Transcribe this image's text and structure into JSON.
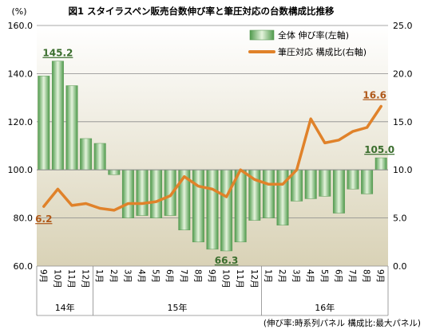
{
  "chart_data": {
    "type": "bar",
    "title": "図1 スタイラスペン販売台数伸び率と筆圧対応の台数構成比推移",
    "left_axis_unit": "(%)",
    "footnote": "(伸び率:時系列パネル 構成比:最大パネル)",
    "categories": [
      "9月",
      "10月",
      "11月",
      "12月",
      "1月",
      "2月",
      "3月",
      "4月",
      "5月",
      "6月",
      "7月",
      "8月",
      "9月",
      "10月",
      "11月",
      "12月",
      "1月",
      "2月",
      "3月",
      "4月",
      "5月",
      "6月",
      "7月",
      "8月",
      "9月"
    ],
    "year_groups": [
      {
        "label": "14年",
        "start": 0,
        "end": 3
      },
      {
        "label": "15年",
        "start": 4,
        "end": 15
      },
      {
        "label": "16年",
        "start": 16,
        "end": 24
      }
    ],
    "ylim_left": [
      60,
      160
    ],
    "yticks_left": [
      "60.0",
      "80.0",
      "100.0",
      "120.0",
      "140.0",
      "160.0"
    ],
    "ylim_right": [
      0,
      25
    ],
    "yticks_right": [
      "0.0",
      "5.0",
      "10.0",
      "15.0",
      "20.0",
      "25.0"
    ],
    "series": [
      {
        "name": "全体 伸び率(左軸)",
        "type": "bar",
        "axis": "left",
        "values": [
          139,
          145.2,
          135,
          113,
          111,
          98,
          80,
          81,
          80,
          81,
          75,
          70,
          67,
          66.3,
          70,
          79,
          80,
          77,
          87,
          88,
          89,
          82,
          92,
          90,
          105.0
        ]
      },
      {
        "name": "筆圧対応 構成比(右軸)",
        "type": "line",
        "axis": "right",
        "color": "#E0822A",
        "values": [
          6.2,
          8.0,
          6.3,
          6.5,
          6.0,
          5.8,
          6.5,
          6.5,
          6.7,
          7.3,
          9.3,
          8.3,
          8.0,
          7.2,
          10.0,
          9.0,
          8.5,
          8.5,
          10.0,
          15.3,
          12.8,
          13.1,
          14.0,
          14.4,
          16.6
        ]
      }
    ],
    "data_labels": [
      {
        "series": 0,
        "index": 1,
        "text": "145.2"
      },
      {
        "series": 0,
        "index": 13,
        "text": "66.3"
      },
      {
        "series": 0,
        "index": 24,
        "text": "105.0"
      },
      {
        "series": 1,
        "index": 0,
        "text": "6.2"
      },
      {
        "series": 1,
        "index": 24,
        "text": "16.6"
      }
    ],
    "legend_position": "top-right",
    "grid": true
  }
}
